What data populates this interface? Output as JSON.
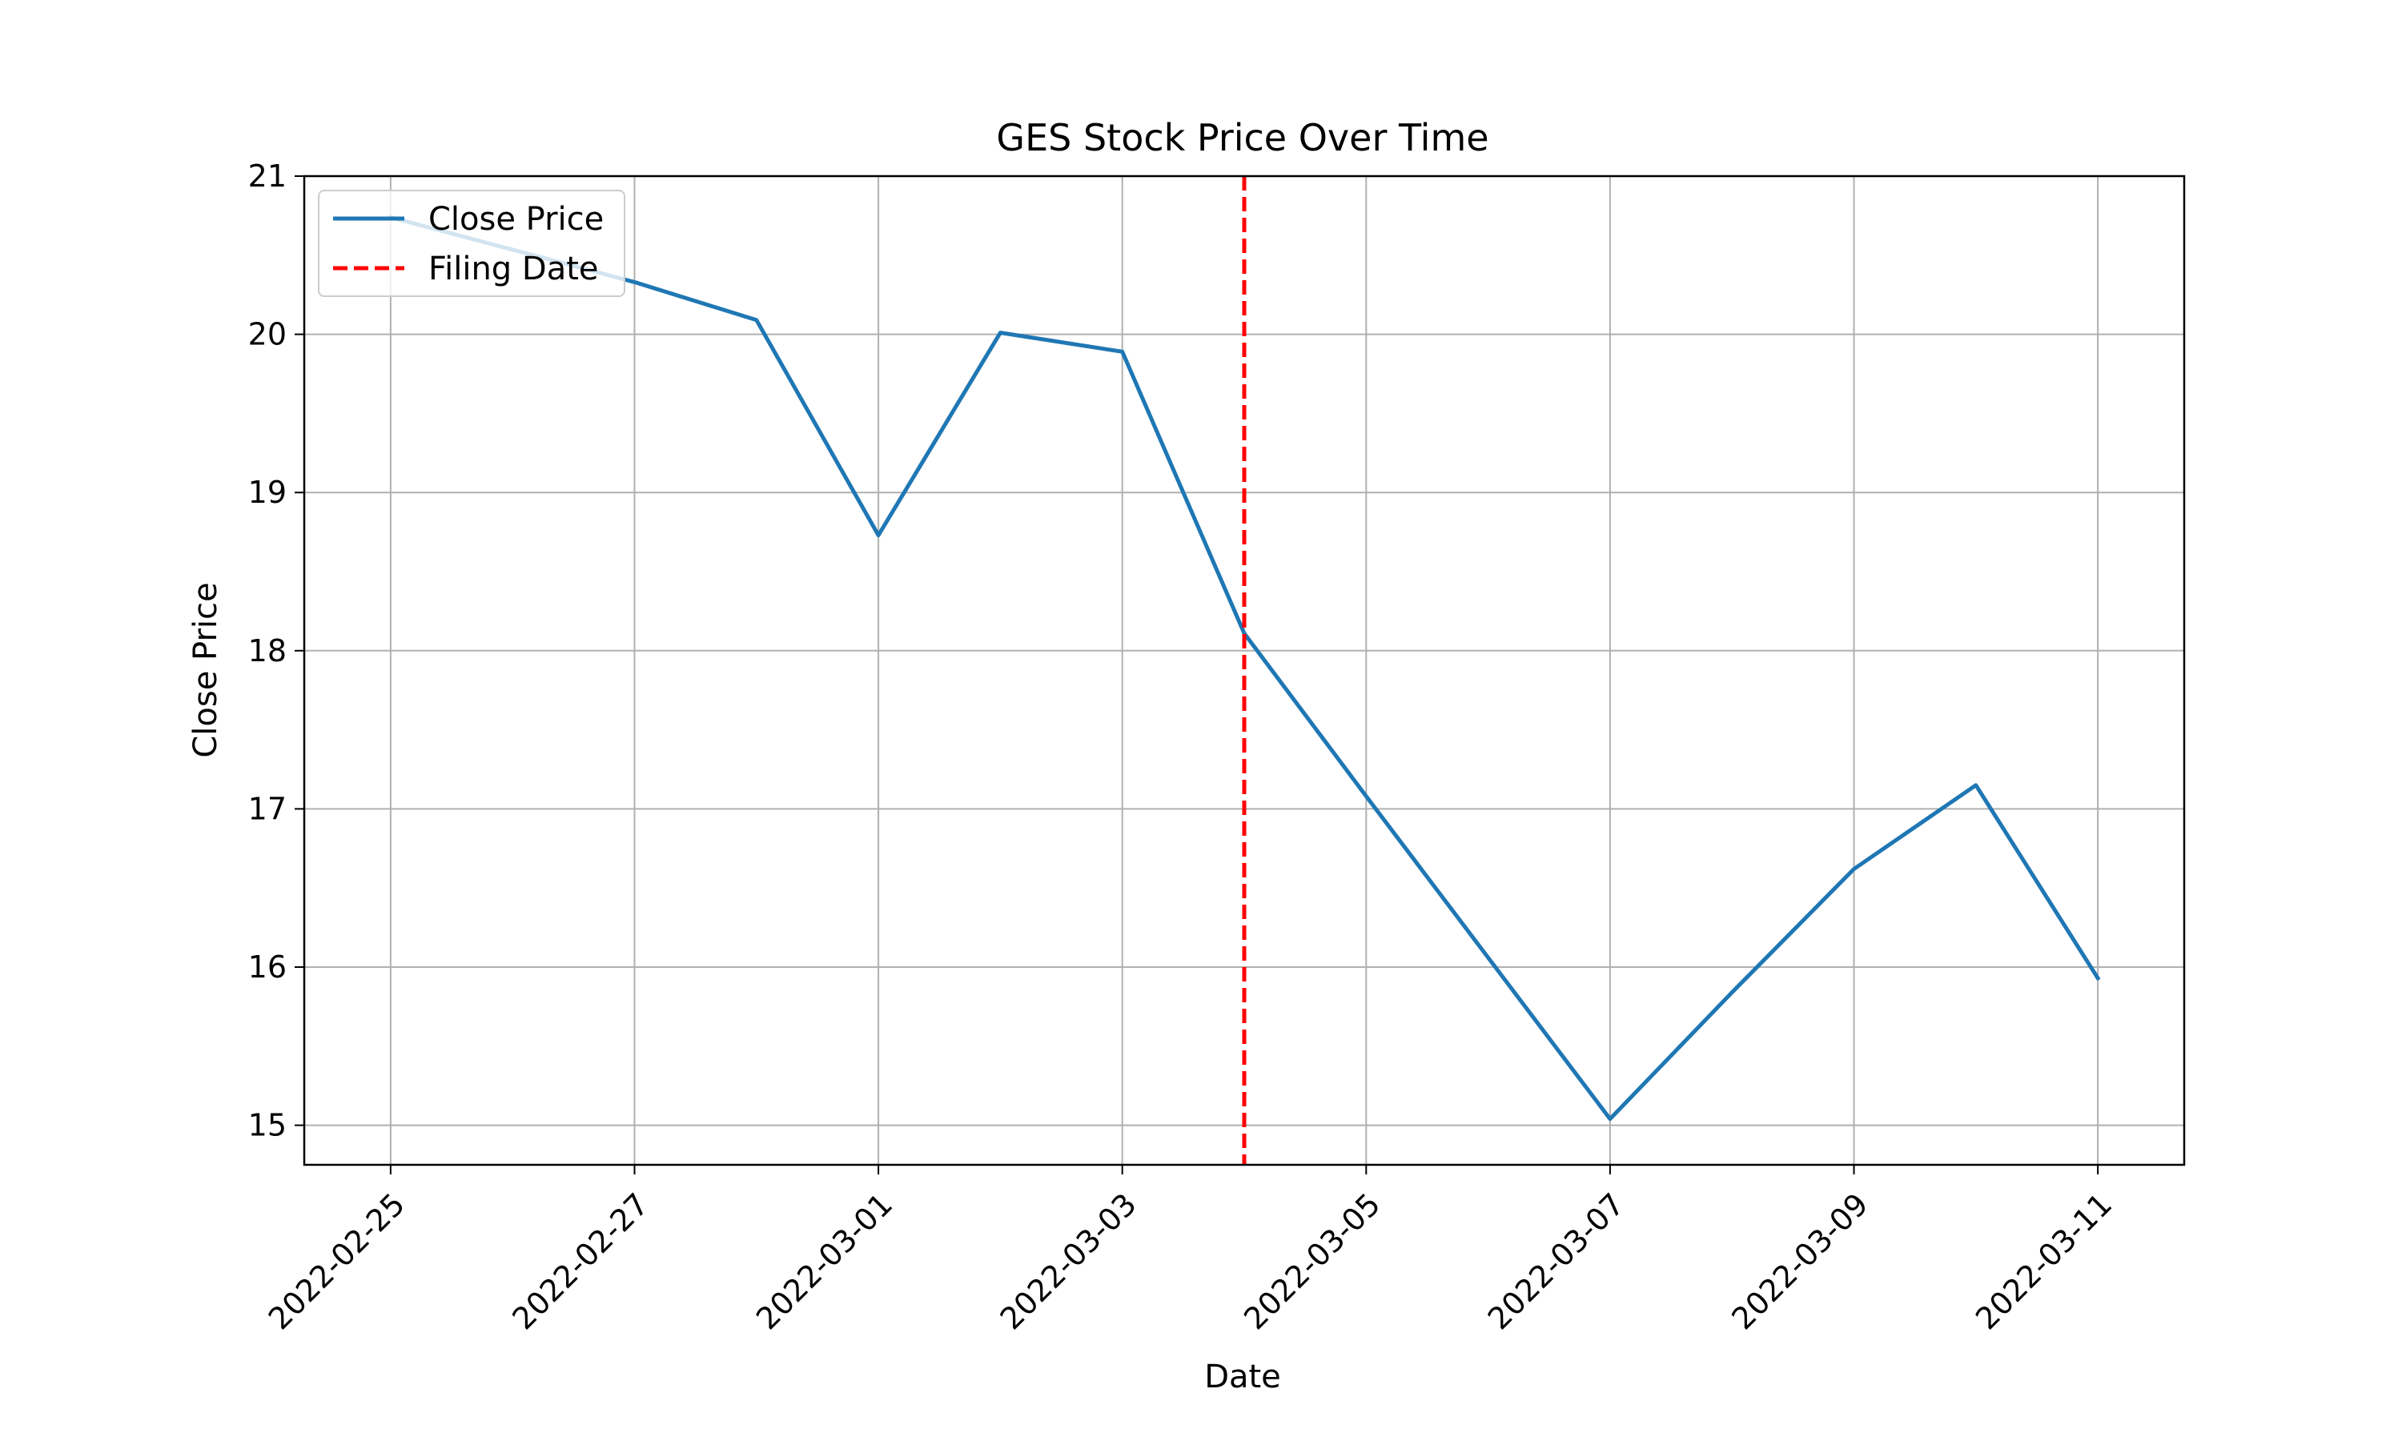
{
  "chart_data": {
    "type": "line",
    "title": "GES Stock Price Over Time",
    "xlabel": "Date",
    "ylabel": "Close Price",
    "x_ticks": [
      "2022-02-25",
      "2022-02-27",
      "2022-03-01",
      "2022-03-03",
      "2022-03-05",
      "2022-03-07",
      "2022-03-09",
      "2022-03-11"
    ],
    "y_ticks": [
      15,
      16,
      17,
      18,
      19,
      20,
      21
    ],
    "ylim": [
      14.75,
      21
    ],
    "xlim": [
      "2022-02-24T07:00",
      "2022-03-11T17:00"
    ],
    "grid": true,
    "legend_position": "top-left",
    "series": [
      {
        "name": "Close Price",
        "color": "#1f77b4",
        "style": "solid",
        "points": [
          {
            "x": "2022-02-25",
            "y": 20.74
          },
          {
            "x": "2022-02-27",
            "y": 20.33
          },
          {
            "x": "2022-02-28",
            "y": 20.09
          },
          {
            "x": "2022-03-01",
            "y": 18.73
          },
          {
            "x": "2022-03-02",
            "y": 20.01
          },
          {
            "x": "2022-03-03",
            "y": 19.89
          },
          {
            "x": "2022-03-04",
            "y": 18.11
          },
          {
            "x": "2022-03-05",
            "y": 17.08
          },
          {
            "x": "2022-03-07",
            "y": 15.04
          },
          {
            "x": "2022-03-08",
            "y": 15.84
          },
          {
            "x": "2022-03-09",
            "y": 16.62
          },
          {
            "x": "2022-03-10",
            "y": 17.15
          },
          {
            "x": "2022-03-11",
            "y": 15.93
          }
        ]
      }
    ],
    "vlines": [
      {
        "name": "Filing Date",
        "x": "2022-03-04",
        "color": "#ff0000",
        "style": "dashed"
      }
    ]
  }
}
